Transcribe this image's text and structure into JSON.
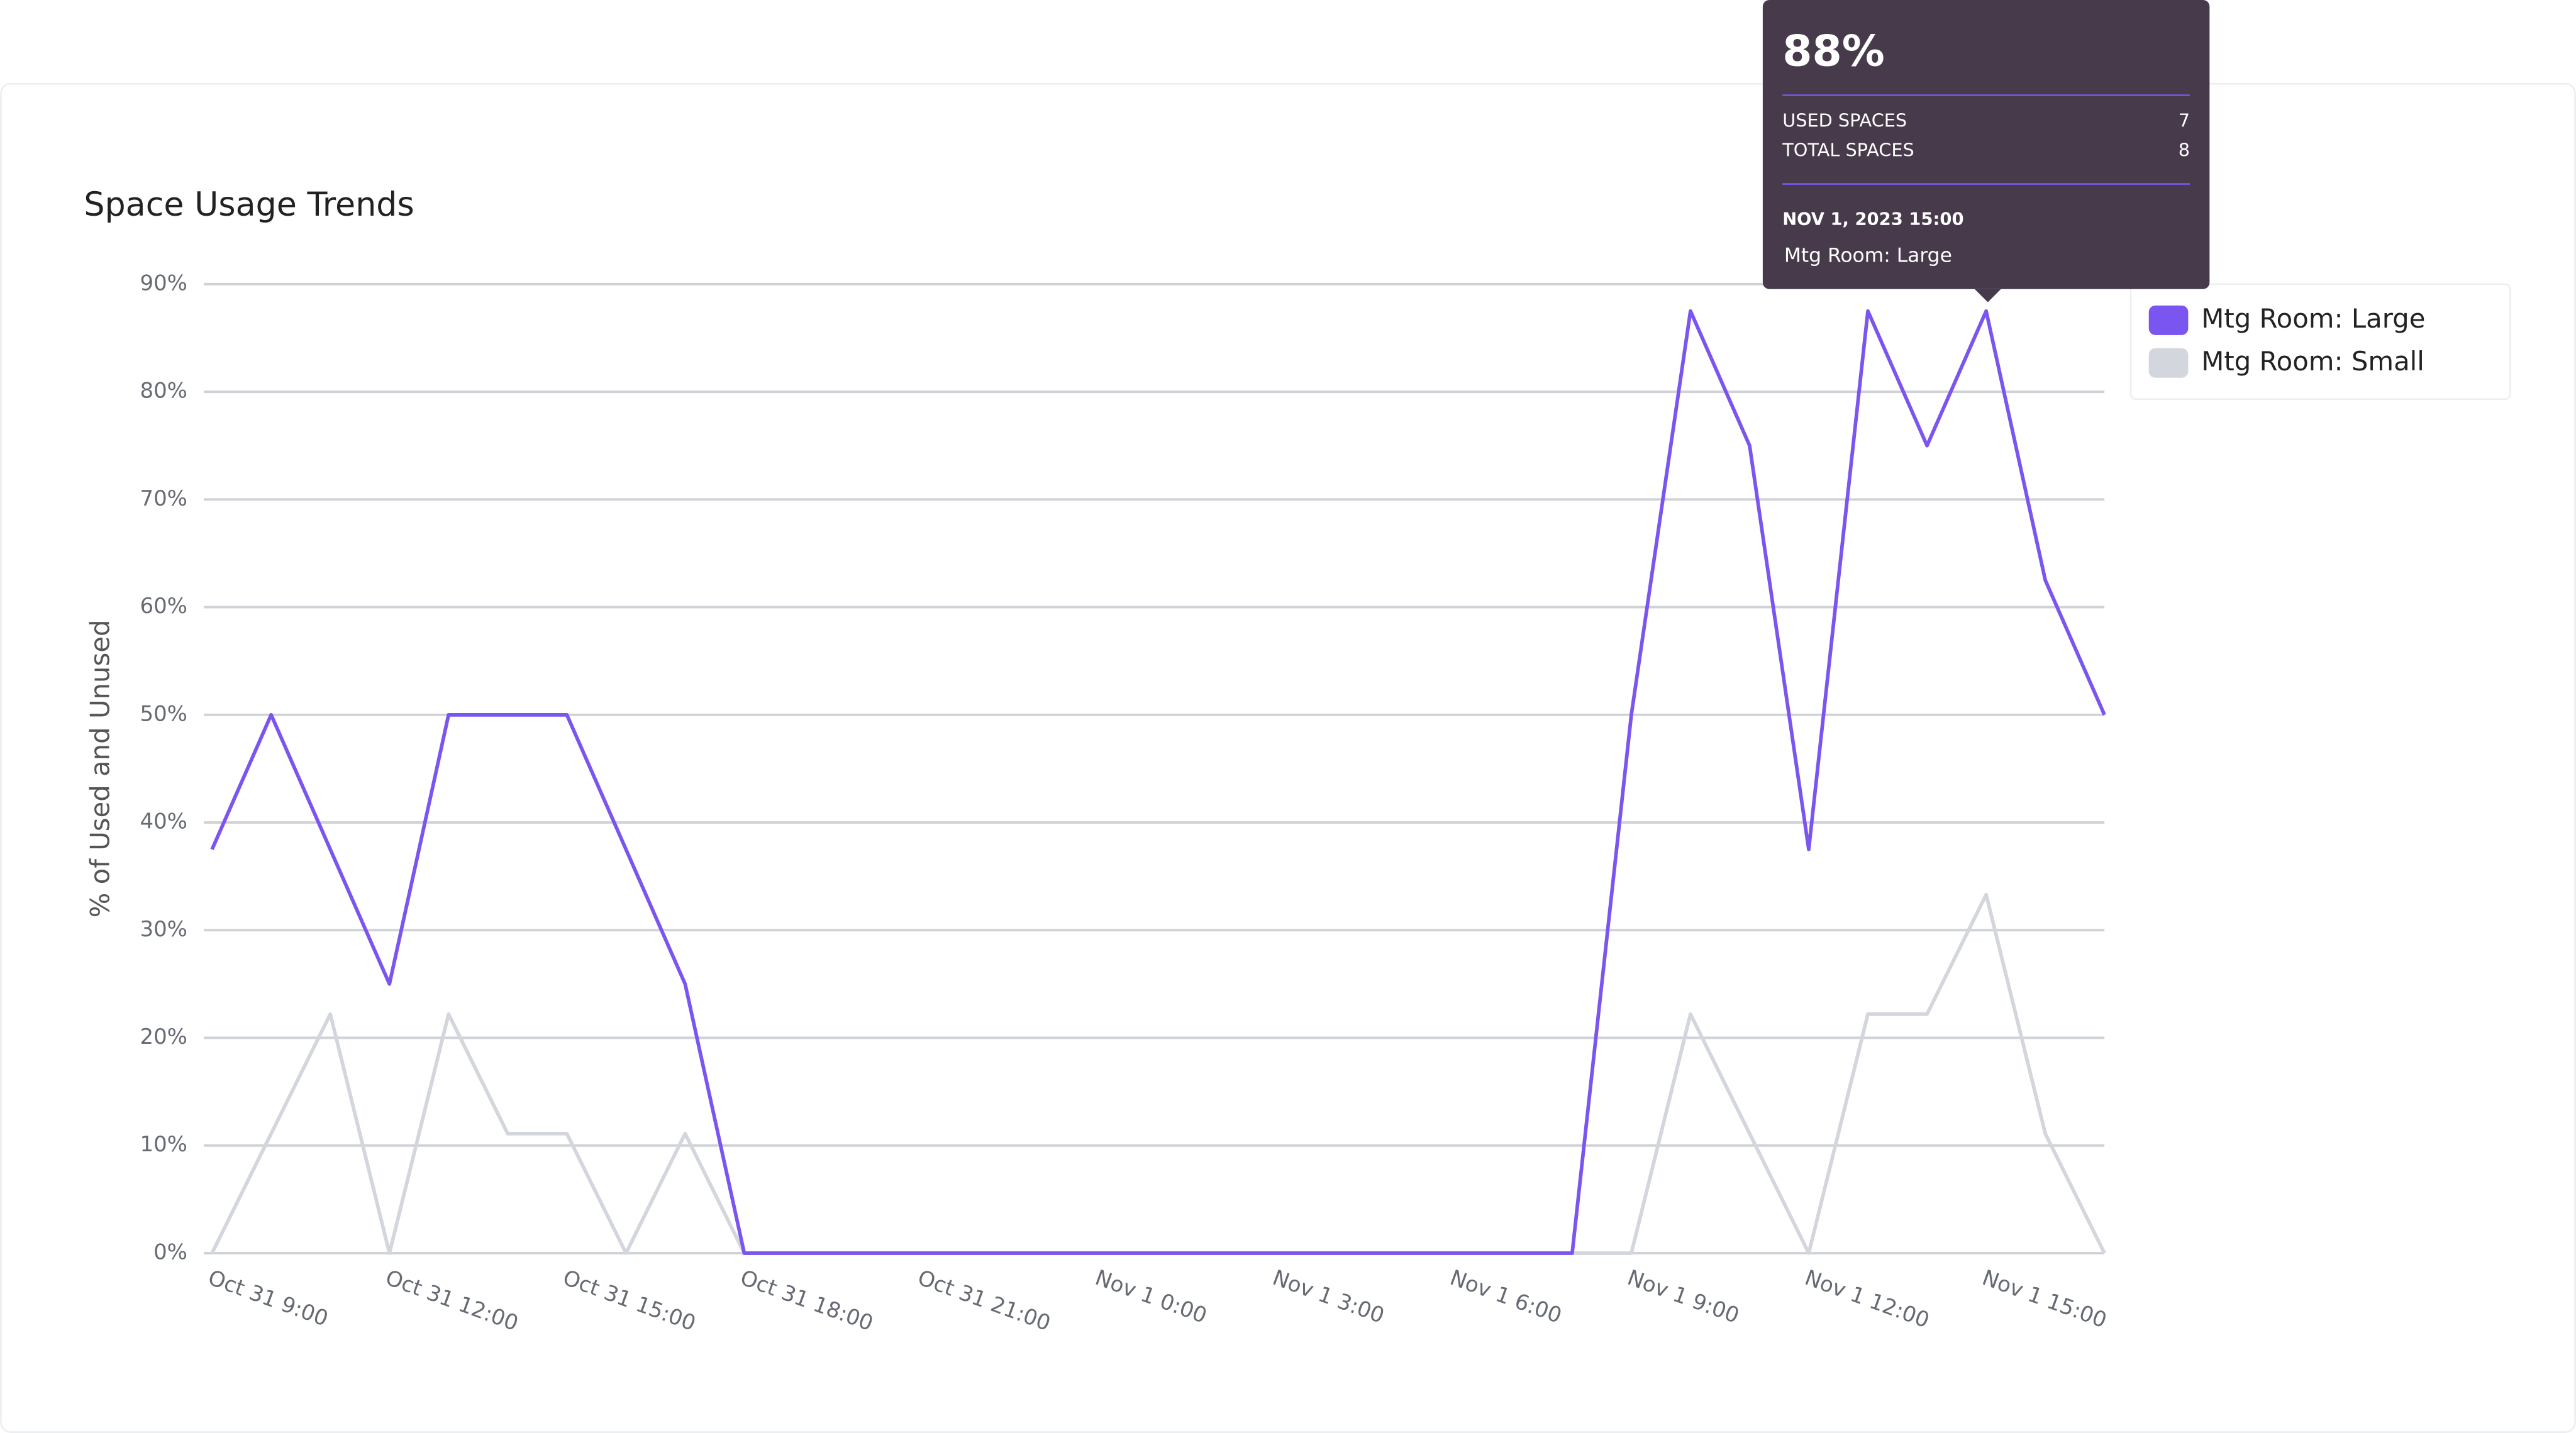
{
  "chart_data": {
    "type": "line",
    "title": "Space Usage Trends",
    "ylabel": "% of Used and Unused",
    "categories": [
      "Oct 31 9:00",
      null,
      null,
      "Oct 31 12:00",
      null,
      null,
      "Oct 31 15:00",
      null,
      null,
      "Oct 31 18:00",
      null,
      null,
      "Oct 31 21:00",
      null,
      null,
      "Nov 1 0:00",
      null,
      null,
      "Nov 1 3:00",
      null,
      null,
      "Nov 1 6:00",
      null,
      null,
      "Nov 1 9:00",
      null,
      null,
      "Nov 1 12:00",
      null,
      null,
      "Nov 1 15:00",
      null,
      null
    ],
    "series": [
      {
        "name": "Mtg Room: Large",
        "color": "#7b55f0",
        "values": [
          37.5,
          50,
          37.5,
          25,
          50,
          50,
          50,
          37.5,
          25,
          0,
          0,
          0,
          0,
          0,
          0,
          0,
          0,
          0,
          0,
          0,
          0,
          0,
          0,
          0,
          50,
          87.5,
          75,
          37.5,
          87.5,
          75,
          87.5,
          62.5,
          50
        ]
      },
      {
        "name": "Mtg Room: Small",
        "color": "#d3d6dd",
        "values": [
          0,
          11.1,
          22.2,
          0,
          22.2,
          11.1,
          11.1,
          0,
          11.1,
          0,
          0,
          0,
          0,
          0,
          0,
          0,
          0,
          0,
          0,
          0,
          0,
          0,
          0,
          0,
          0,
          22.2,
          11.1,
          0,
          22.2,
          22.2,
          33.3,
          11.1,
          0
        ]
      }
    ],
    "ylim": [
      0,
      90
    ],
    "yticks": [
      {
        "value": 0,
        "label": "0%"
      },
      {
        "value": 10,
        "label": "10%"
      },
      {
        "value": 20,
        "label": "20%"
      },
      {
        "value": 30,
        "label": "30%"
      },
      {
        "value": 40,
        "label": "40%"
      },
      {
        "value": 50,
        "label": "50%"
      },
      {
        "value": 60,
        "label": "60%"
      },
      {
        "value": 70,
        "label": "70%"
      },
      {
        "value": 80,
        "label": "80%"
      },
      {
        "value": 90,
        "label": "90%"
      }
    ],
    "grid": true,
    "legend": "right"
  },
  "tooltip": {
    "value": "88%",
    "rows": [
      [
        "USED SPACES",
        "7"
      ],
      [
        "TOTAL SPACES",
        "8"
      ]
    ],
    "date": "NOV 1, 2023 15:00",
    "series": "Mtg Room: Large"
  }
}
